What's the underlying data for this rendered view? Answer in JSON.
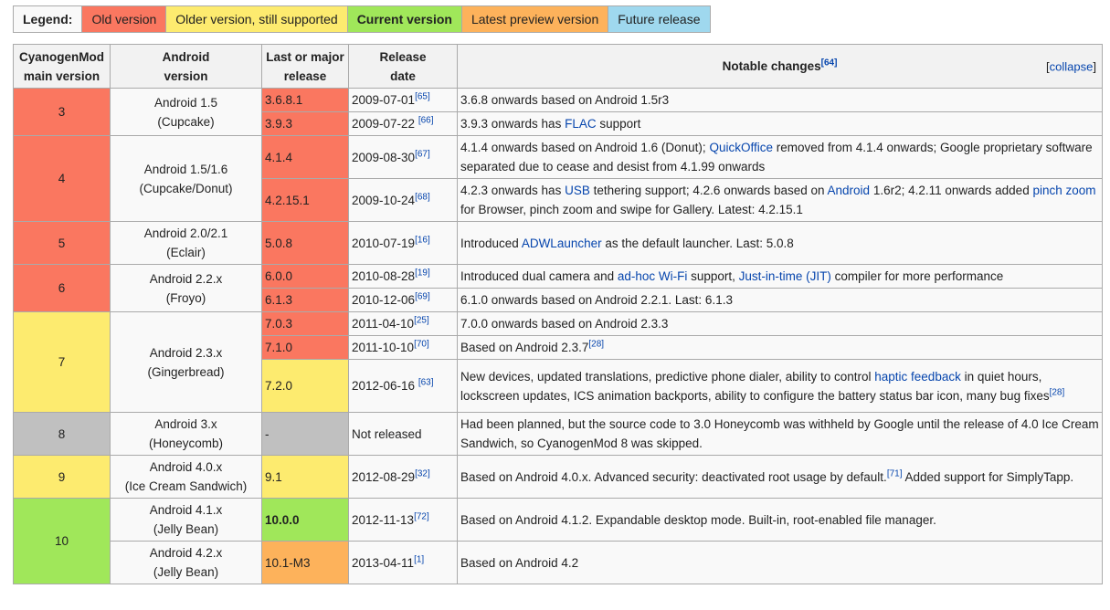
{
  "legend": {
    "label": "Legend:",
    "items": [
      {
        "text": "Old version",
        "status": "old"
      },
      {
        "text": "Older version, still supported",
        "status": "older"
      },
      {
        "text": "Current version",
        "status": "current"
      },
      {
        "text": "Latest preview version",
        "status": "preview"
      },
      {
        "text": "Future release",
        "status": "future"
      }
    ]
  },
  "colors": {
    "old": "#fa7760",
    "older": "#fdeb6f",
    "current": "#a0e75a",
    "preview": "#fdb25b",
    "future": "#9fd8ee",
    "unreleased": "#c0c0c0"
  },
  "headers": {
    "main_version_1": "CyanogenMod",
    "main_version_2": "main version",
    "android_1": "Android",
    "android_2": "version",
    "release_1": "Last or major",
    "release_2": "release",
    "date_1": "Release",
    "date_2": "date",
    "notable": "Notable changes",
    "notable_ref": "[64]",
    "collapse_open": "[",
    "collapse": "collapse",
    "collapse_close": "]"
  },
  "groups": [
    {
      "version": "3",
      "android": [
        "Android 1.5",
        "(Cupcake)"
      ],
      "status": "old",
      "rows": [
        {
          "release": "3.6.8.1",
          "status": "old",
          "date": "2009-07-01",
          "ref": "[65]",
          "notes": [
            {
              "t": "3.6.8 onwards based on Android 1.5r3"
            }
          ]
        },
        {
          "release": "3.9.3",
          "status": "old",
          "date": "2009-07-22 ",
          "ref": "[66]",
          "notes": [
            {
              "t": "3.9.3 onwards has "
            },
            {
              "t": "FLAC",
              "link": true
            },
            {
              "t": " support"
            }
          ]
        }
      ]
    },
    {
      "version": "4",
      "android": [
        "Android 1.5/1.6",
        "(Cupcake/Donut)"
      ],
      "status": "old",
      "rows": [
        {
          "release": "4.1.4",
          "status": "old",
          "date": "2009-08-30",
          "ref": "[67]",
          "notes": [
            {
              "t": "4.1.4 onwards based on Android 1.6 (Donut); "
            },
            {
              "t": "QuickOffice",
              "link": true
            },
            {
              "t": " removed from 4.1.4 onwards; Google proprietary software separated due to cease and desist from 4.1.99 onwards"
            }
          ]
        },
        {
          "release": "4.2.15.1",
          "status": "old",
          "date": "2009-10-24",
          "ref": "[68]",
          "notes": [
            {
              "t": "4.2.3 onwards has "
            },
            {
              "t": "USB",
              "link": true
            },
            {
              "t": " tethering support; 4.2.6 onwards based on "
            },
            {
              "t": "Android",
              "link": true
            },
            {
              "t": " 1.6r2; 4.2.11 onwards added "
            },
            {
              "t": "pinch zoom",
              "link": true
            },
            {
              "t": " for Browser, pinch zoom and swipe for Gallery. Latest: 4.2.15.1"
            }
          ]
        }
      ]
    },
    {
      "version": "5",
      "android": [
        "Android 2.0/2.1",
        "(Eclair)"
      ],
      "status": "old",
      "rows": [
        {
          "release": "5.0.8",
          "status": "old",
          "date": "2010-07-19",
          "ref": "[16]",
          "notes": [
            {
              "t": "Introduced "
            },
            {
              "t": "ADWLauncher",
              "link": true
            },
            {
              "t": " as the default launcher. Last: 5.0.8"
            }
          ]
        }
      ]
    },
    {
      "version": "6",
      "android": [
        "Android 2.2.x",
        "(Froyo)"
      ],
      "status": "old",
      "rows": [
        {
          "release": "6.0.0",
          "status": "old",
          "date": "2010-08-28",
          "ref": "[19]",
          "notes": [
            {
              "t": "Introduced dual camera and "
            },
            {
              "t": "ad-hoc Wi-Fi",
              "link": true
            },
            {
              "t": " support, "
            },
            {
              "t": "Just-in-time (JIT)",
              "link": true
            },
            {
              "t": " compiler for more performance"
            }
          ]
        },
        {
          "release": "6.1.3",
          "status": "old",
          "date": "2010-12-06",
          "ref": "[69]",
          "notes": [
            {
              "t": "6.1.0 onwards based on Android 2.2.1. Last: 6.1.3"
            }
          ]
        }
      ]
    },
    {
      "version": "7",
      "android": [
        "Android 2.3.x",
        "(Gingerbread)"
      ],
      "status": "older",
      "rows": [
        {
          "release": "7.0.3",
          "status": "old",
          "date": "2011-04-10",
          "ref": "[25]",
          "notes": [
            {
              "t": "7.0.0 onwards based on Android 2.3.3"
            }
          ]
        },
        {
          "release": "7.1.0",
          "status": "old",
          "date": "2011-10-10",
          "ref": "[70]",
          "notes": [
            {
              "t": "Based on Android 2.3.7"
            },
            {
              "t": "[28]",
              "sup": true
            }
          ]
        },
        {
          "release": "7.2.0",
          "status": "older",
          "date": "2012-06-16 ",
          "ref": "[63]",
          "notes": [
            {
              "t": "New devices, updated translations, predictive phone dialer, ability to control "
            },
            {
              "t": "haptic feedback",
              "link": true
            },
            {
              "t": " in quiet hours, lockscreen updates, ICS animation backports, ability to configure the battery status bar icon, many bug fixes"
            },
            {
              "t": "[28]",
              "sup": true
            }
          ]
        }
      ]
    },
    {
      "version": "8",
      "android": [
        "Android 3.x",
        "(Honeycomb)"
      ],
      "status": "unreleased",
      "rows": [
        {
          "release": "-",
          "status": "unreleased",
          "date": "Not released",
          "ref": "",
          "notes": [
            {
              "t": "Had been planned, but the source code to 3.0 Honeycomb was withheld by Google until the release of 4.0 Ice Cream Sandwich, so CyanogenMod 8 was skipped."
            }
          ]
        }
      ]
    },
    {
      "version": "9",
      "android": [
        "Android 4.0.x",
        "(Ice Cream Sandwich)"
      ],
      "status": "older",
      "rows": [
        {
          "release": "9.1",
          "status": "older",
          "date": "2012-08-29",
          "ref": "[32]",
          "notes": [
            {
              "t": "Based on Android 4.0.x. Advanced security: deactivated root usage by default."
            },
            {
              "t": "[71]",
              "sup": true
            },
            {
              "t": " Added support for SimplyTapp."
            }
          ]
        }
      ]
    },
    {
      "version": "10",
      "android": [
        "Android 4.1.x",
        "(Jelly Bean)"
      ],
      "status": "current",
      "rows": [
        {
          "release": "10.0.0",
          "status": "current",
          "date": "2012-11-13",
          "ref": "[72]",
          "notes": [
            {
              "t": "Based on Android 4.1.2. Expandable desktop mode. Built-in, root-enabled file manager."
            }
          ]
        },
        {
          "release": "10.1-M3",
          "status": "preview",
          "date": "2013-04-11",
          "ref": "[1]",
          "android": [
            "Android 4.2.x",
            "(Jelly Bean)"
          ],
          "notes": [
            {
              "t": "Based on Android 4.2"
            }
          ]
        }
      ]
    }
  ]
}
